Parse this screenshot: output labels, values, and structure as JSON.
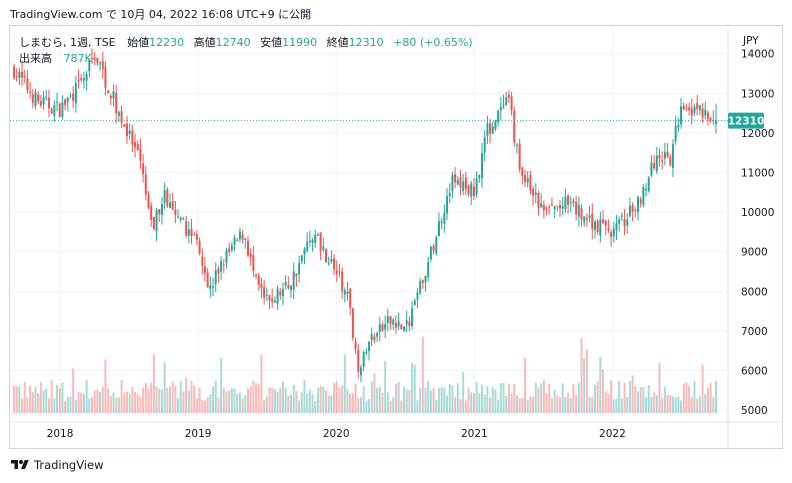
{
  "header": {
    "text": "TradingView.com で 10月 04, 2022 16:08 UTC+9 に公開"
  },
  "legend": {
    "symbol": "しまむら, 1週, TSE",
    "open_label": "始値",
    "open": "12230",
    "high_label": "高値",
    "high": "12740",
    "low_label": "安値",
    "low": "11990",
    "close_label": "終値",
    "close": "12310",
    "change": "+80 (+0.65%)",
    "volume_label": "出来高",
    "volume": "787K"
  },
  "footer": {
    "brand": "TradingView"
  },
  "colors": {
    "up": "#26a69a",
    "down": "#ef5350",
    "text": "#131722",
    "grid": "#f0f3fa",
    "price_line": "#26a69a"
  },
  "chart_data": {
    "type": "candlestick",
    "title": "しまむら, 1週, TSE",
    "currency_label": "JPY",
    "last_price": 12310,
    "x_ticks": [
      "2018",
      "2019",
      "2020",
      "2021",
      "2022"
    ],
    "y_ticks": [
      5000,
      6000,
      7000,
      8000,
      9000,
      10000,
      11000,
      12000,
      13000,
      14000
    ],
    "ylim": [
      4700,
      14700
    ],
    "date_range": [
      "2017-09",
      "2022-10"
    ],
    "grid": true,
    "price_path_weekly_close": [
      {
        "date": "2017-09",
        "close": 13600
      },
      {
        "date": "2017-11",
        "close": 12800
      },
      {
        "date": "2018-01",
        "close": 12600
      },
      {
        "date": "2018-03",
        "close": 13300
      },
      {
        "date": "2018-04",
        "close": 14000
      },
      {
        "date": "2018-06",
        "close": 12600
      },
      {
        "date": "2018-08",
        "close": 11200
      },
      {
        "date": "2018-09",
        "close": 9500
      },
      {
        "date": "2018-10",
        "close": 10500
      },
      {
        "date": "2018-11",
        "close": 9800
      },
      {
        "date": "2019-01",
        "close": 9300
      },
      {
        "date": "2019-02",
        "close": 8000
      },
      {
        "date": "2019-03",
        "close": 8700
      },
      {
        "date": "2019-05",
        "close": 9500
      },
      {
        "date": "2019-06",
        "close": 8200
      },
      {
        "date": "2019-07",
        "close": 7700
      },
      {
        "date": "2019-09",
        "close": 8200
      },
      {
        "date": "2019-11",
        "close": 9500
      },
      {
        "date": "2020-01",
        "close": 8500
      },
      {
        "date": "2020-02",
        "close": 7800
      },
      {
        "date": "2020-03",
        "close": 6000
      },
      {
        "date": "2020-04",
        "close": 6800
      },
      {
        "date": "2020-06",
        "close": 7300
      },
      {
        "date": "2020-07",
        "close": 7000
      },
      {
        "date": "2020-09",
        "close": 8700
      },
      {
        "date": "2020-11",
        "close": 10800
      },
      {
        "date": "2021-01",
        "close": 10500
      },
      {
        "date": "2021-02",
        "close": 12000
      },
      {
        "date": "2021-04",
        "close": 12800
      },
      {
        "date": "2021-05",
        "close": 11000
      },
      {
        "date": "2021-07",
        "close": 10000
      },
      {
        "date": "2021-09",
        "close": 10200
      },
      {
        "date": "2021-11",
        "close": 9800
      },
      {
        "date": "2022-01",
        "close": 9500
      },
      {
        "date": "2022-03",
        "close": 10100
      },
      {
        "date": "2022-05",
        "close": 11500
      },
      {
        "date": "2022-06",
        "close": 11200
      },
      {
        "date": "2022-07",
        "close": 12800
      },
      {
        "date": "2022-08",
        "close": 12600
      },
      {
        "date": "2022-10",
        "close": 12310
      }
    ]
  }
}
